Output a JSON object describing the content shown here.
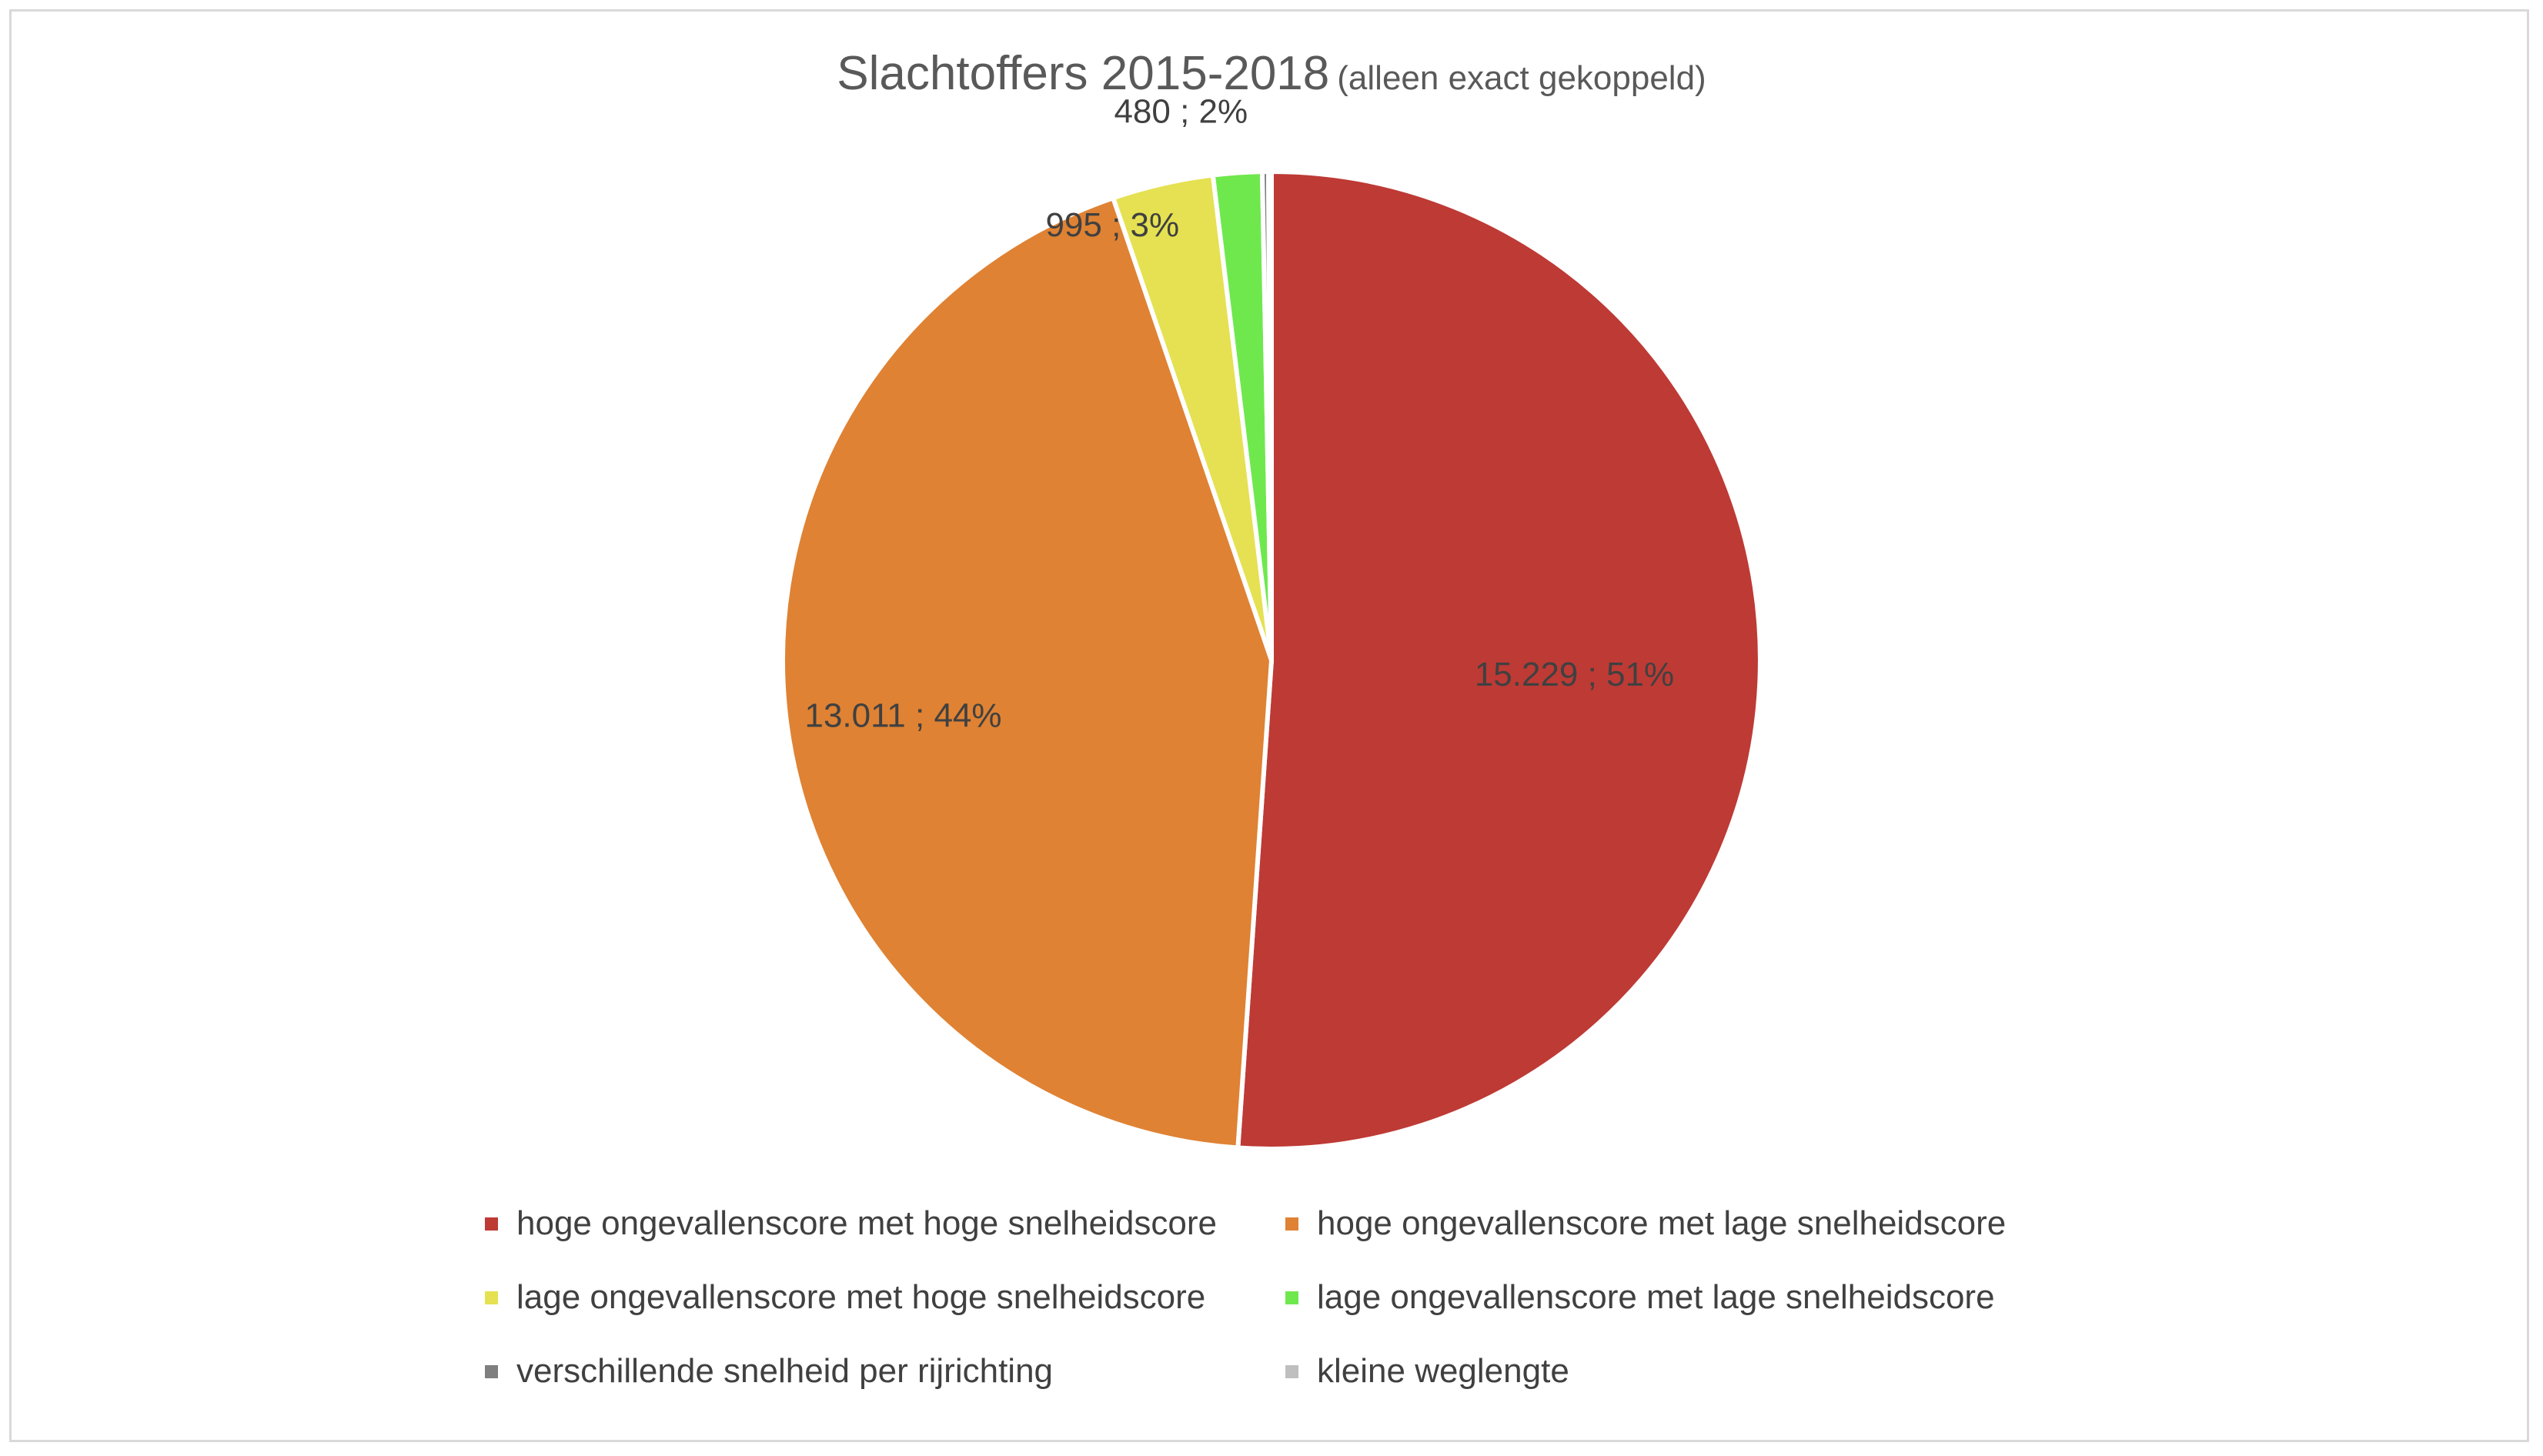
{
  "chart_data": {
    "type": "pie",
    "title": "Slachtoffers 2015-2018",
    "subtitle": "(alleen exact gekoppeld)",
    "slices": [
      {
        "name": "hoge ongevallenscore met hoge snelheidscore",
        "value": 15229,
        "label": "15.229 ; 51%",
        "color": "#BE3A35"
      },
      {
        "name": "hoge ongevallenscore met lage snelheidscore",
        "value": 13011,
        "label": "13.011 ; 44%",
        "color": "#DF8233"
      },
      {
        "name": "lage ongevallenscore met hoge snelheidscore",
        "value": 995,
        "label": "995 ; 3%",
        "color": "#E5E152"
      },
      {
        "name": "lage ongevallenscore met lage snelheidscore",
        "value": 480,
        "label": "480 ; 2%",
        "color": "#6FE84E"
      },
      {
        "name": "verschillende snelheid per rijrichting",
        "value": 60,
        "label": "",
        "color": "#7F7F7F"
      },
      {
        "name": "kleine weglengte",
        "value": 30,
        "label": "",
        "color": "#BFBFBF"
      }
    ],
    "legend_position": "bottom"
  }
}
